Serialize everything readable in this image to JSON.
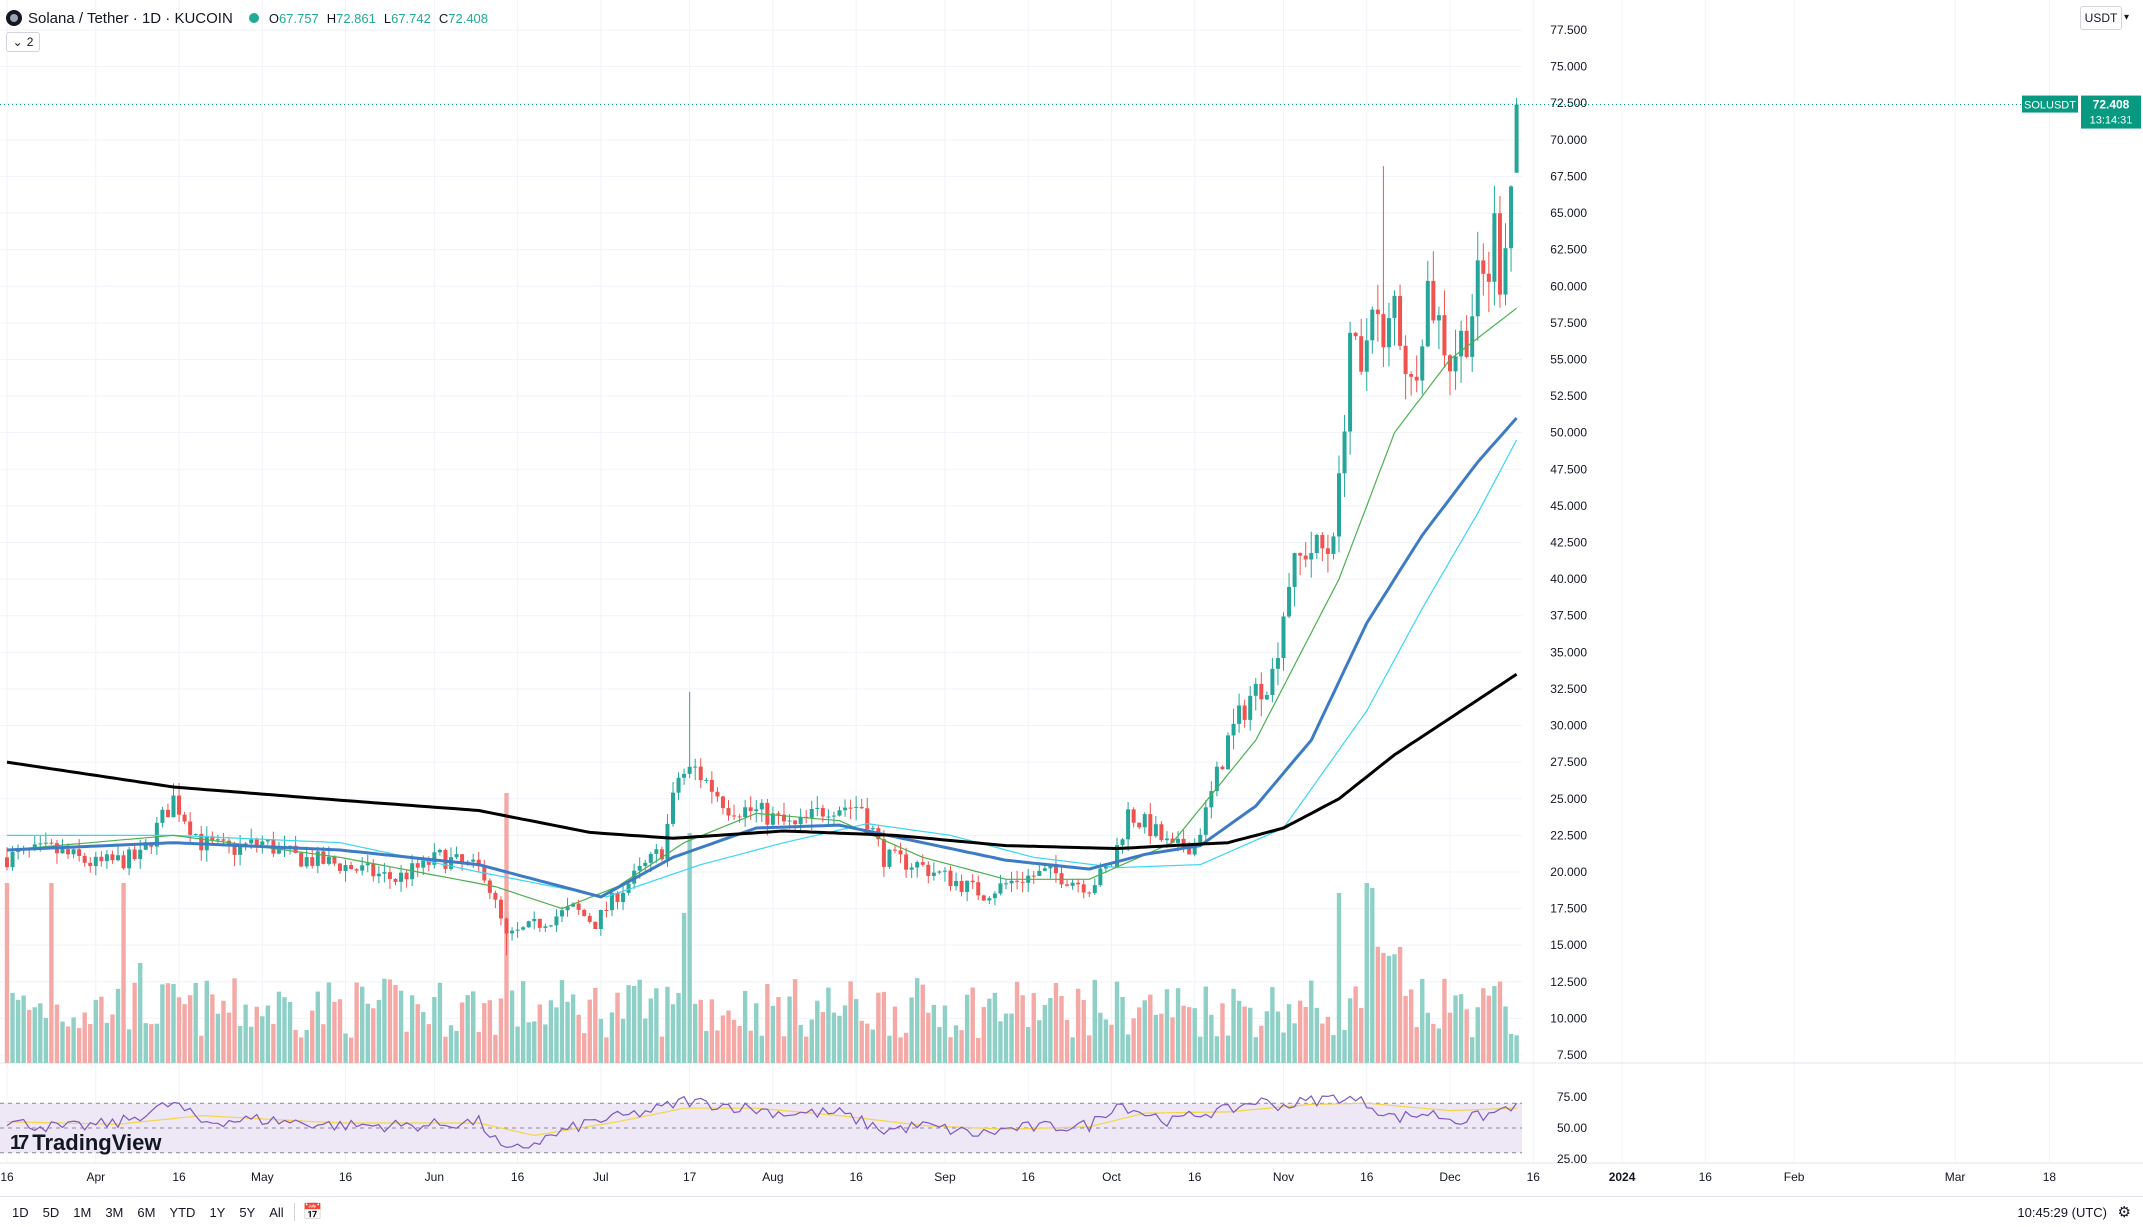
{
  "header": {
    "symbol_title": "Solana / Tether · 1D · KUCOIN",
    "open_label": "O",
    "open_value": "67.757",
    "high_label": "H",
    "high_value": "72.861",
    "low_label": "L",
    "low_value": "67.742",
    "close_label": "C",
    "close_value": "72.408",
    "indicator_count": "2",
    "currency": "USDT"
  },
  "price_tag": {
    "symbol": "SOLUSDT",
    "price": "72.408",
    "countdown": "13:14:31"
  },
  "colors": {
    "up": "#26a69a",
    "down": "#ef5350",
    "vol_up": "#8fd0c6",
    "vol_down": "#f4a9a6",
    "ma_green": "#4caf50",
    "ma_blue": "#3d7bc4",
    "ma_cyan": "#3ad6f2",
    "ma_black": "#000000",
    "rsi_line": "#7e57c2",
    "rsi_ma": "#f5d547",
    "rsi_band": "#ede7f6",
    "grid": "#f0f3fa",
    "price_tag": "#089981"
  },
  "chart_data": {
    "type": "candlestick",
    "title": "Solana / Tether · 1D · KUCOIN",
    "ylim": [
      7.5,
      77.5
    ],
    "y_ticks": [
      "77.500",
      "75.000",
      "72.500",
      "70.000",
      "67.500",
      "65.000",
      "62.500",
      "60.000",
      "57.500",
      "55.000",
      "52.500",
      "50.000",
      "47.500",
      "45.000",
      "42.500",
      "40.000",
      "37.500",
      "35.000",
      "32.500",
      "30.000",
      "27.500",
      "25.000",
      "22.500",
      "20.000",
      "17.500",
      "15.000",
      "12.500",
      "10.000",
      "7.500"
    ],
    "x_ticks": [
      {
        "label": "16",
        "day": 0
      },
      {
        "label": "Apr",
        "day": 16
      },
      {
        "label": "16",
        "day": 31
      },
      {
        "label": "May",
        "day": 46
      },
      {
        "label": "16",
        "day": 61
      },
      {
        "label": "Jun",
        "day": 77
      },
      {
        "label": "16",
        "day": 92
      },
      {
        "label": "Jul",
        "day": 107
      },
      {
        "label": "17",
        "day": 123
      },
      {
        "label": "Aug",
        "day": 138
      },
      {
        "label": "16",
        "day": 153
      },
      {
        "label": "Sep",
        "day": 169
      },
      {
        "label": "16",
        "day": 184
      },
      {
        "label": "Oct",
        "day": 199
      },
      {
        "label": "16",
        "day": 214
      },
      {
        "label": "Nov",
        "day": 230
      },
      {
        "label": "16",
        "day": 245
      },
      {
        "label": "Dec",
        "day": 260
      },
      {
        "label": "16",
        "day": 275
      },
      {
        "label": "2024",
        "day": 291
      },
      {
        "label": "16",
        "day": 306
      },
      {
        "label": "Feb",
        "day": 322
      },
      {
        "label": "Mar",
        "day": 351
      },
      {
        "label": "18",
        "day": 368
      }
    ],
    "price_keypoints": [
      [
        0,
        21
      ],
      [
        8,
        21.5
      ],
      [
        16,
        20.5
      ],
      [
        24,
        21
      ],
      [
        30,
        25
      ],
      [
        35,
        22
      ],
      [
        40,
        21.5
      ],
      [
        46,
        22
      ],
      [
        52,
        21
      ],
      [
        60,
        20.5
      ],
      [
        70,
        19.5
      ],
      [
        78,
        21
      ],
      [
        86,
        20
      ],
      [
        90,
        15.5
      ],
      [
        96,
        16.5
      ],
      [
        102,
        17.5
      ],
      [
        106,
        16.5
      ],
      [
        110,
        18.5
      ],
      [
        114,
        20
      ],
      [
        118,
        21.5
      ],
      [
        121,
        26.5
      ],
      [
        124,
        27
      ],
      [
        130,
        24.5
      ],
      [
        136,
        24
      ],
      [
        142,
        23
      ],
      [
        148,
        24.5
      ],
      [
        154,
        24.5
      ],
      [
        158,
        21
      ],
      [
        164,
        20.5
      ],
      [
        170,
        19.5
      ],
      [
        176,
        18.5
      ],
      [
        182,
        19.5
      ],
      [
        188,
        20
      ],
      [
        195,
        19
      ],
      [
        199,
        20.5
      ],
      [
        202,
        24
      ],
      [
        206,
        23
      ],
      [
        210,
        21.5
      ],
      [
        214,
        22
      ],
      [
        216,
        24
      ],
      [
        220,
        29
      ],
      [
        224,
        32
      ],
      [
        228,
        33.5
      ],
      [
        231,
        40
      ],
      [
        234,
        42
      ],
      [
        238,
        42
      ],
      [
        240,
        46
      ],
      [
        242,
        57
      ],
      [
        244,
        53
      ],
      [
        246,
        60
      ],
      [
        248,
        55
      ],
      [
        250,
        59
      ],
      [
        253,
        53
      ],
      [
        256,
        60
      ],
      [
        260,
        55
      ],
      [
        263,
        57
      ],
      [
        265,
        60
      ],
      [
        267,
        61
      ],
      [
        268,
        64
      ],
      [
        269,
        61
      ],
      [
        271,
        67
      ],
      [
        272,
        72.4
      ]
    ],
    "ma_short_keypoints": [
      [
        0,
        21.5
      ],
      [
        30,
        22.5
      ],
      [
        60,
        21
      ],
      [
        88,
        19
      ],
      [
        100,
        17.5
      ],
      [
        110,
        19
      ],
      [
        122,
        22
      ],
      [
        135,
        24
      ],
      [
        150,
        23.5
      ],
      [
        165,
        21
      ],
      [
        180,
        19.5
      ],
      [
        195,
        19.5
      ],
      [
        210,
        22
      ],
      [
        225,
        29
      ],
      [
        240,
        40
      ],
      [
        250,
        50
      ],
      [
        260,
        55
      ],
      [
        272,
        58.5
      ]
    ],
    "ma_mid_keypoints": [
      [
        0,
        21.5
      ],
      [
        30,
        22
      ],
      [
        60,
        21.5
      ],
      [
        85,
        20.5
      ],
      [
        107,
        18.3
      ],
      [
        120,
        21
      ],
      [
        135,
        23
      ],
      [
        150,
        23.2
      ],
      [
        165,
        22
      ],
      [
        180,
        20.8
      ],
      [
        195,
        20.2
      ],
      [
        205,
        21.2
      ],
      [
        215,
        21.8
      ],
      [
        225,
        24.5
      ],
      [
        235,
        29
      ],
      [
        245,
        37
      ],
      [
        255,
        43
      ],
      [
        265,
        48
      ],
      [
        272,
        51
      ]
    ],
    "ma_mid2_keypoints": [
      [
        0,
        22.5
      ],
      [
        30,
        22.5
      ],
      [
        60,
        22
      ],
      [
        85,
        20
      ],
      [
        108,
        18.3
      ],
      [
        125,
        20.5
      ],
      [
        140,
        22
      ],
      [
        155,
        23.3
      ],
      [
        170,
        22.5
      ],
      [
        185,
        21
      ],
      [
        200,
        20.3
      ],
      [
        215,
        20.5
      ],
      [
        230,
        23
      ],
      [
        245,
        31
      ],
      [
        255,
        38
      ],
      [
        265,
        44.5
      ],
      [
        272,
        49.5
      ]
    ],
    "ma_long_keypoints": [
      [
        0,
        27.5
      ],
      [
        30,
        25.8
      ],
      [
        60,
        24.9
      ],
      [
        85,
        24.2
      ],
      [
        105,
        22.7
      ],
      [
        120,
        22.3
      ],
      [
        140,
        22.8
      ],
      [
        160,
        22.5
      ],
      [
        180,
        21.8
      ],
      [
        200,
        21.6
      ],
      [
        220,
        22
      ],
      [
        230,
        23
      ],
      [
        240,
        25
      ],
      [
        250,
        28
      ],
      [
        260,
        30.5
      ],
      [
        272,
        33.5
      ]
    ],
    "volume_scale_note": "volume histogram in lower price pane",
    "rsi": {
      "ticks": [
        "75.00",
        "50.00",
        "25.00"
      ],
      "upper_band": 70,
      "lower_band": 30,
      "keypoints": [
        [
          0,
          55
        ],
        [
          10,
          50
        ],
        [
          20,
          54
        ],
        [
          30,
          70
        ],
        [
          35,
          55
        ],
        [
          45,
          57
        ],
        [
          60,
          52
        ],
        [
          75,
          52
        ],
        [
          85,
          55
        ],
        [
          90,
          30
        ],
        [
          95,
          38
        ],
        [
          105,
          55
        ],
        [
          112,
          60
        ],
        [
          118,
          66
        ],
        [
          122,
          72
        ],
        [
          130,
          68
        ],
        [
          140,
          62
        ],
        [
          150,
          62
        ],
        [
          158,
          48
        ],
        [
          165,
          52
        ],
        [
          175,
          45
        ],
        [
          182,
          50
        ],
        [
          195,
          52
        ],
        [
          200,
          70
        ],
        [
          205,
          62
        ],
        [
          210,
          55
        ],
        [
          215,
          62
        ],
        [
          220,
          64
        ],
        [
          225,
          72
        ],
        [
          230,
          68
        ],
        [
          235,
          72
        ],
        [
          240,
          75
        ],
        [
          245,
          70
        ],
        [
          250,
          58
        ],
        [
          256,
          62
        ],
        [
          262,
          56
        ],
        [
          268,
          62
        ],
        [
          272,
          70
        ]
      ],
      "ma_keypoints": [
        [
          0,
          55
        ],
        [
          20,
          53
        ],
        [
          35,
          60
        ],
        [
          60,
          54
        ],
        [
          85,
          54
        ],
        [
          95,
          44
        ],
        [
          110,
          55
        ],
        [
          122,
          66
        ],
        [
          135,
          66
        ],
        [
          150,
          60
        ],
        [
          165,
          52
        ],
        [
          180,
          49
        ],
        [
          195,
          51
        ],
        [
          205,
          62
        ],
        [
          220,
          63
        ],
        [
          235,
          69
        ],
        [
          245,
          70
        ],
        [
          260,
          64
        ],
        [
          272,
          66
        ]
      ]
    }
  },
  "branding": {
    "name": "TradingView"
  },
  "bottom_bar": {
    "timeframes": [
      "1D",
      "5D",
      "1M",
      "3M",
      "6M",
      "YTD",
      "1Y",
      "5Y",
      "All"
    ],
    "clock": "10:45:29 (UTC)"
  }
}
